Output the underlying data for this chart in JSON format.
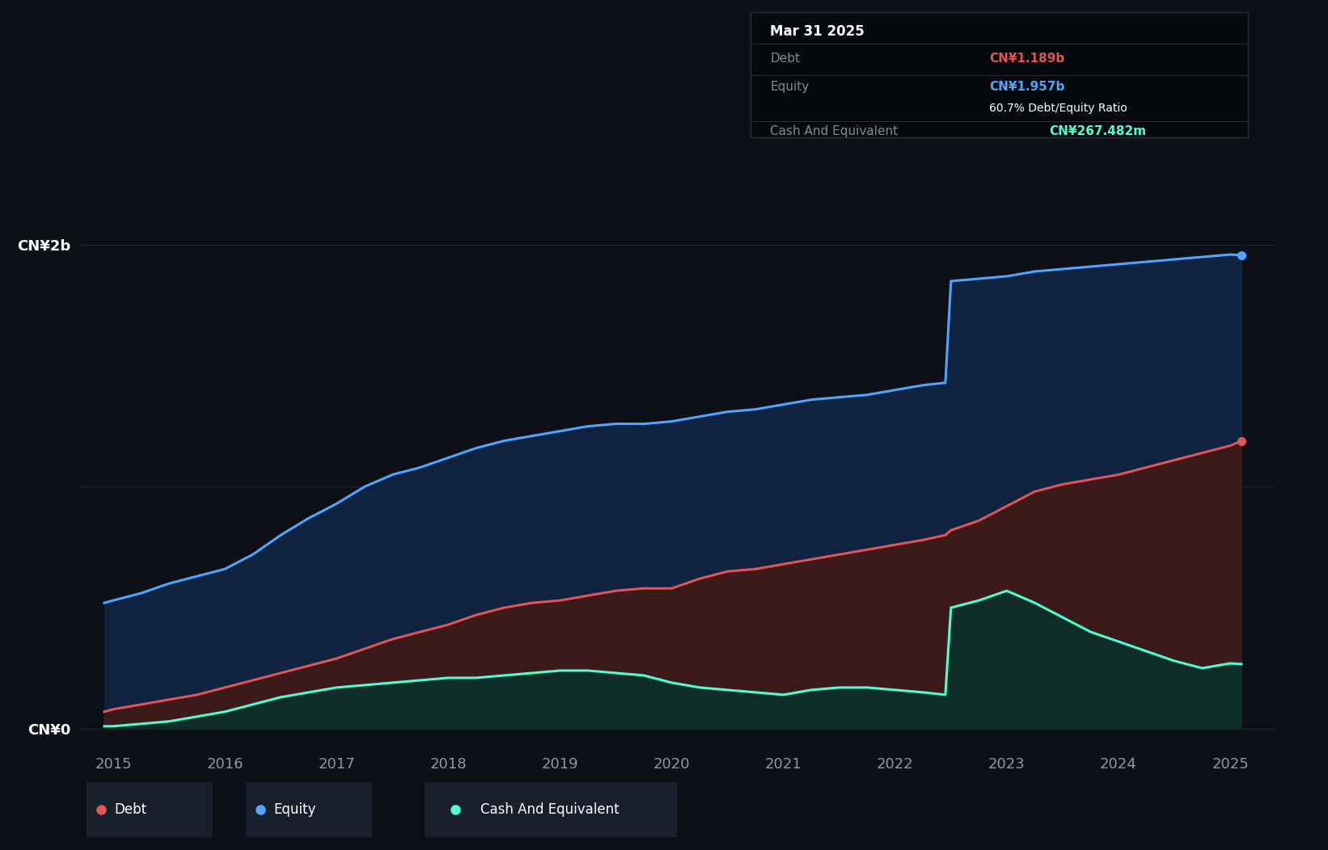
{
  "bg_color": "#0d1117",
  "plot_bg_color": "#131922",
  "grid_color": "#1e2535",
  "debt_color": "#e05555",
  "equity_color": "#4da6ff",
  "cash_color": "#4dffd4",
  "debt_fill": "#3d1a1a",
  "equity_fill": "#0f2240",
  "cash_fill": "#0f2d28",
  "ylabel_top": "CN¥2b",
  "ylabel_bottom": "CN¥0",
  "tooltip_bg": "#060a0f",
  "tooltip_border": "#2a2f3a",
  "tooltip_title": "Mar 31 2025",
  "tooltip_debt_label": "Debt",
  "tooltip_debt_value": "CN¥1.189b",
  "tooltip_equity_label": "Equity",
  "tooltip_equity_value": "CN¥1.957b",
  "tooltip_ratio": "60.7% Debt/Equity Ratio",
  "tooltip_cash_label": "Cash And Equivalent",
  "tooltip_cash_value": "CN¥267.482m",
  "legend_bg": "#1a1f2e",
  "years": [
    2014.92,
    2015.0,
    2015.25,
    2015.5,
    2015.75,
    2016.0,
    2016.25,
    2016.5,
    2016.75,
    2017.0,
    2017.25,
    2017.5,
    2017.75,
    2018.0,
    2018.25,
    2018.5,
    2018.75,
    2019.0,
    2019.25,
    2019.5,
    2019.75,
    2020.0,
    2020.25,
    2020.5,
    2020.75,
    2021.0,
    2021.25,
    2021.5,
    2021.75,
    2022.0,
    2022.25,
    2022.45,
    2022.5,
    2022.75,
    2023.0,
    2023.25,
    2023.5,
    2023.75,
    2024.0,
    2024.25,
    2024.5,
    2024.75,
    2025.0,
    2025.1
  ],
  "equity": [
    0.52,
    0.53,
    0.56,
    0.6,
    0.63,
    0.66,
    0.72,
    0.8,
    0.87,
    0.93,
    1.0,
    1.05,
    1.08,
    1.12,
    1.16,
    1.19,
    1.21,
    1.23,
    1.25,
    1.26,
    1.26,
    1.27,
    1.29,
    1.31,
    1.32,
    1.34,
    1.36,
    1.37,
    1.38,
    1.4,
    1.42,
    1.43,
    1.85,
    1.86,
    1.87,
    1.89,
    1.9,
    1.91,
    1.92,
    1.93,
    1.94,
    1.95,
    1.96,
    1.957
  ],
  "debt": [
    0.07,
    0.08,
    0.1,
    0.12,
    0.14,
    0.17,
    0.2,
    0.23,
    0.26,
    0.29,
    0.33,
    0.37,
    0.4,
    0.43,
    0.47,
    0.5,
    0.52,
    0.53,
    0.55,
    0.57,
    0.58,
    0.58,
    0.62,
    0.65,
    0.66,
    0.68,
    0.7,
    0.72,
    0.74,
    0.76,
    0.78,
    0.8,
    0.82,
    0.86,
    0.92,
    0.98,
    1.01,
    1.03,
    1.05,
    1.08,
    1.11,
    1.14,
    1.17,
    1.189
  ],
  "cash": [
    0.01,
    0.01,
    0.02,
    0.03,
    0.05,
    0.07,
    0.1,
    0.13,
    0.15,
    0.17,
    0.18,
    0.19,
    0.2,
    0.21,
    0.21,
    0.22,
    0.23,
    0.24,
    0.24,
    0.23,
    0.22,
    0.19,
    0.17,
    0.16,
    0.15,
    0.14,
    0.16,
    0.17,
    0.17,
    0.16,
    0.15,
    0.14,
    0.5,
    0.53,
    0.57,
    0.52,
    0.46,
    0.4,
    0.36,
    0.32,
    0.28,
    0.25,
    0.27,
    0.267
  ],
  "ylim_min": -0.08,
  "ylim_max": 2.45,
  "xlim_min": 2014.7,
  "xlim_max": 2025.4,
  "x_ticks": [
    2015,
    2016,
    2017,
    2018,
    2019,
    2020,
    2021,
    2022,
    2023,
    2024,
    2025
  ]
}
